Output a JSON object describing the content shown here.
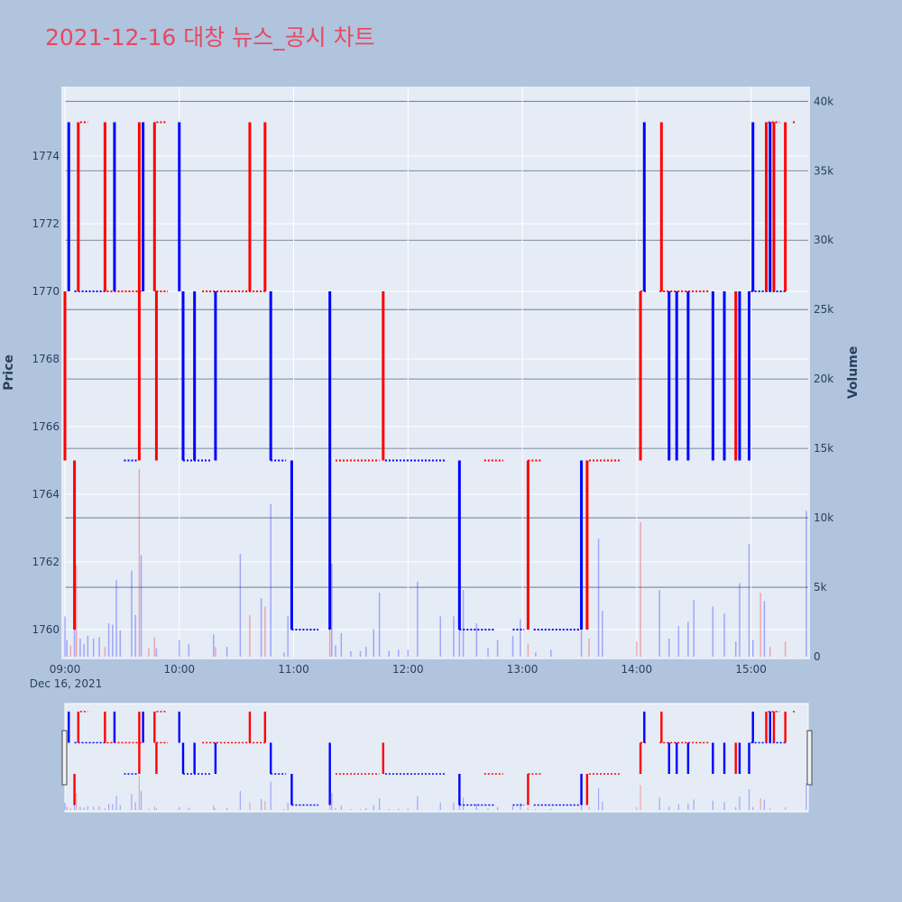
{
  "page": {
    "title": "2021-12-16 대창 뉴스_공시 차트"
  },
  "colors": {
    "up": "#ff0000",
    "down": "#0000ff",
    "background": "#b0c4de",
    "plot_bg": "#e5ecf6",
    "title": "#e8485f"
  },
  "chart_data": {
    "type": "candlestick",
    "title": "2021-12-16 대창 뉴스_공시 차트",
    "y_axis": {
      "label": "Price",
      "range": [
        1759.2,
        1776.0
      ],
      "ticks": [
        "1760",
        "1762",
        "1764",
        "1766",
        "1768",
        "1770",
        "1772",
        "1774"
      ],
      "tick_values": [
        1760,
        1762,
        1764,
        1766,
        1768,
        1770,
        1772,
        1774
      ]
    },
    "y2_axis": {
      "label": "Volume",
      "range": [
        0,
        40800
      ],
      "ticks": [
        "0",
        "5k",
        "10k",
        "15k",
        "20k",
        "25k",
        "30k",
        "35k",
        "40k"
      ],
      "tick_values": [
        0,
        5000,
        10000,
        15000,
        20000,
        25000,
        30000,
        35000,
        40000
      ]
    },
    "x_axis": {
      "range": [
        "09:00",
        "15:30"
      ],
      "ticks": [
        "09:00",
        "10:00",
        "11:00",
        "12:00",
        "13:00",
        "14:00",
        "15:00"
      ],
      "date_label": "Dec 16, 2021"
    },
    "grid": true,
    "range_slider": true,
    "price_jumps": [
      {
        "t": "09:00",
        "from": 1765,
        "to": 1770,
        "dir": "up"
      },
      {
        "t": "09:02",
        "from": 1770,
        "to": 1775,
        "dir": "down"
      },
      {
        "t": "09:03",
        "from": 1765,
        "to": 1760,
        "dir": "down"
      },
      {
        "t": "09:05",
        "from": 1760,
        "to": 1765,
        "dir": "up"
      },
      {
        "t": "09:07",
        "from": 1770,
        "to": 1775,
        "dir": "up"
      },
      {
        "t": "09:21",
        "from": 1770,
        "to": 1775,
        "dir": "up"
      },
      {
        "t": "09:26",
        "from": 1770,
        "to": 1775,
        "dir": "down"
      },
      {
        "t": "09:39",
        "from": 1765,
        "to": 1775,
        "dir": "up"
      },
      {
        "t": "09:41",
        "from": 1770,
        "to": 1775,
        "dir": "down"
      },
      {
        "t": "09:47",
        "from": 1770,
        "to": 1775,
        "dir": "up"
      },
      {
        "t": "09:48",
        "from": 1765,
        "to": 1770,
        "dir": "up"
      },
      {
        "t": "10:00",
        "from": 1770,
        "to": 1775,
        "dir": "down"
      },
      {
        "t": "10:02",
        "from": 1765,
        "to": 1770,
        "dir": "down"
      },
      {
        "t": "10:08",
        "from": 1765,
        "to": 1770,
        "dir": "down"
      },
      {
        "t": "10:19",
        "from": 1765,
        "to": 1770,
        "dir": "down"
      },
      {
        "t": "10:37",
        "from": 1770,
        "to": 1775,
        "dir": "up"
      },
      {
        "t": "10:45",
        "from": 1770,
        "to": 1775,
        "dir": "up"
      },
      {
        "t": "10:48",
        "from": 1765,
        "to": 1770,
        "dir": "down"
      },
      {
        "t": "10:59",
        "from": 1760,
        "to": 1765,
        "dir": "down"
      },
      {
        "t": "11:19",
        "from": 1760,
        "to": 1770,
        "dir": "down"
      },
      {
        "t": "11:47",
        "from": 1765,
        "to": 1770,
        "dir": "up"
      },
      {
        "t": "12:27",
        "from": 1760,
        "to": 1765,
        "dir": "down"
      },
      {
        "t": "13:03",
        "from": 1760,
        "to": 1765,
        "dir": "up"
      },
      {
        "t": "13:31",
        "from": 1760,
        "to": 1765,
        "dir": "down"
      },
      {
        "t": "13:34",
        "from": 1760,
        "to": 1765,
        "dir": "up"
      },
      {
        "t": "14:02",
        "from": 1765,
        "to": 1770,
        "dir": "up"
      },
      {
        "t": "14:04",
        "from": 1770,
        "to": 1775,
        "dir": "down"
      },
      {
        "t": "14:13",
        "from": 1770,
        "to": 1775,
        "dir": "up"
      },
      {
        "t": "14:17",
        "from": 1765,
        "to": 1770,
        "dir": "down"
      },
      {
        "t": "14:21",
        "from": 1765,
        "to": 1770,
        "dir": "down"
      },
      {
        "t": "14:27",
        "from": 1765,
        "to": 1770,
        "dir": "down"
      },
      {
        "t": "14:40",
        "from": 1765,
        "to": 1770,
        "dir": "down"
      },
      {
        "t": "14:46",
        "from": 1765,
        "to": 1770,
        "dir": "down"
      },
      {
        "t": "14:52",
        "from": 1765,
        "to": 1770,
        "dir": "up"
      },
      {
        "t": "14:54",
        "from": 1765,
        "to": 1770,
        "dir": "down"
      },
      {
        "t": "14:59",
        "from": 1765,
        "to": 1770,
        "dir": "down"
      },
      {
        "t": "15:01",
        "from": 1770,
        "to": 1775,
        "dir": "down"
      },
      {
        "t": "15:08",
        "from": 1770,
        "to": 1775,
        "dir": "up"
      },
      {
        "t": "15:10",
        "from": 1770,
        "to": 1775,
        "dir": "down"
      },
      {
        "t": "15:12",
        "from": 1770,
        "to": 1775,
        "dir": "up"
      },
      {
        "t": "15:18",
        "from": 1770,
        "to": 1775,
        "dir": "up"
      }
    ],
    "price_levels": [
      {
        "from": "09:05",
        "to": "09:22",
        "level": 1770,
        "dir": "down"
      },
      {
        "from": "09:08",
        "to": "09:12",
        "level": 1775,
        "dir": "up"
      },
      {
        "from": "09:22",
        "to": "09:40",
        "level": 1770,
        "dir": "up"
      },
      {
        "from": "09:31",
        "to": "09:38",
        "level": 1765,
        "dir": "down"
      },
      {
        "from": "09:48",
        "to": "09:54",
        "level": 1770,
        "dir": "up"
      },
      {
        "from": "09:48",
        "to": "09:53",
        "level": 1775,
        "dir": "up"
      },
      {
        "from": "10:02",
        "to": "10:17",
        "level": 1765,
        "dir": "down"
      },
      {
        "from": "10:12",
        "to": "10:46",
        "level": 1770,
        "dir": "up"
      },
      {
        "from": "10:48",
        "to": "10:56",
        "level": 1765,
        "dir": "down"
      },
      {
        "from": "10:59",
        "to": "11:13",
        "level": 1760,
        "dir": "down"
      },
      {
        "from": "11:22",
        "to": "11:45",
        "level": 1765,
        "dir": "up"
      },
      {
        "from": "11:48",
        "to": "12:20",
        "level": 1765,
        "dir": "down"
      },
      {
        "from": "12:27",
        "to": "12:45",
        "level": 1760,
        "dir": "down"
      },
      {
        "from": "12:40",
        "to": "12:50",
        "level": 1765,
        "dir": "up"
      },
      {
        "from": "12:55",
        "to": "13:01",
        "level": 1760,
        "dir": "down"
      },
      {
        "from": "13:03",
        "to": "13:10",
        "level": 1765,
        "dir": "up"
      },
      {
        "from": "13:06",
        "to": "13:30",
        "level": 1760,
        "dir": "down"
      },
      {
        "from": "13:35",
        "to": "13:52",
        "level": 1765,
        "dir": "up"
      },
      {
        "from": "14:02",
        "to": "14:05",
        "level": 1770,
        "dir": "up"
      },
      {
        "from": "14:12",
        "to": "14:38",
        "level": 1770,
        "dir": "up"
      },
      {
        "from": "15:00",
        "to": "15:18",
        "level": 1770,
        "dir": "down"
      },
      {
        "from": "15:09",
        "to": "15:15",
        "level": 1775,
        "dir": "up"
      },
      {
        "from": "15:22",
        "to": "15:23",
        "level": 1775,
        "dir": "up"
      }
    ],
    "volume_bars": [
      {
        "t": "09:00",
        "v": 2900,
        "dir": "down"
      },
      {
        "t": "09:01",
        "v": 1200,
        "dir": "down"
      },
      {
        "t": "09:03",
        "v": 800,
        "dir": "up"
      },
      {
        "t": "09:05",
        "v": 2700,
        "dir": "down"
      },
      {
        "t": "09:06",
        "v": 6600,
        "dir": "up"
      },
      {
        "t": "09:08",
        "v": 1300,
        "dir": "down"
      },
      {
        "t": "09:10",
        "v": 900,
        "dir": "down"
      },
      {
        "t": "09:12",
        "v": 1500,
        "dir": "down"
      },
      {
        "t": "09:15",
        "v": 1300,
        "dir": "down"
      },
      {
        "t": "09:18",
        "v": 1400,
        "dir": "down"
      },
      {
        "t": "09:21",
        "v": 700,
        "dir": "up"
      },
      {
        "t": "09:23",
        "v": 2400,
        "dir": "down"
      },
      {
        "t": "09:25",
        "v": 2300,
        "dir": "down"
      },
      {
        "t": "09:27",
        "v": 5500,
        "dir": "down"
      },
      {
        "t": "09:29",
        "v": 1900,
        "dir": "down"
      },
      {
        "t": "09:35",
        "v": 6200,
        "dir": "down"
      },
      {
        "t": "09:37",
        "v": 3000,
        "dir": "down"
      },
      {
        "t": "09:39",
        "v": 13500,
        "dir": "up"
      },
      {
        "t": "09:40",
        "v": 7300,
        "dir": "down"
      },
      {
        "t": "09:44",
        "v": 600,
        "dir": "up"
      },
      {
        "t": "09:47",
        "v": 1400,
        "dir": "up"
      },
      {
        "t": "09:48",
        "v": 600,
        "dir": "down"
      },
      {
        "t": "10:00",
        "v": 1200,
        "dir": "down"
      },
      {
        "t": "10:05",
        "v": 900,
        "dir": "down"
      },
      {
        "t": "10:18",
        "v": 1600,
        "dir": "down"
      },
      {
        "t": "10:19",
        "v": 700,
        "dir": "up"
      },
      {
        "t": "10:25",
        "v": 700,
        "dir": "down"
      },
      {
        "t": "10:32",
        "v": 7400,
        "dir": "down"
      },
      {
        "t": "10:37",
        "v": 3000,
        "dir": "up"
      },
      {
        "t": "10:43",
        "v": 4200,
        "dir": "down"
      },
      {
        "t": "10:45",
        "v": 3600,
        "dir": "up"
      },
      {
        "t": "10:48",
        "v": 11000,
        "dir": "down"
      },
      {
        "t": "10:55",
        "v": 300,
        "dir": "down"
      },
      {
        "t": "10:57",
        "v": 2900,
        "dir": "down"
      },
      {
        "t": "11:19",
        "v": 6600,
        "dir": "up"
      },
      {
        "t": "11:20",
        "v": 6700,
        "dir": "down"
      },
      {
        "t": "11:22",
        "v": 800,
        "dir": "down"
      },
      {
        "t": "11:25",
        "v": 1700,
        "dir": "down"
      },
      {
        "t": "11:30",
        "v": 400,
        "dir": "down"
      },
      {
        "t": "11:35",
        "v": 400,
        "dir": "down"
      },
      {
        "t": "11:38",
        "v": 700,
        "dir": "down"
      },
      {
        "t": "11:42",
        "v": 2000,
        "dir": "down"
      },
      {
        "t": "11:45",
        "v": 4600,
        "dir": "down"
      },
      {
        "t": "11:50",
        "v": 400,
        "dir": "down"
      },
      {
        "t": "11:55",
        "v": 500,
        "dir": "down"
      },
      {
        "t": "12:00",
        "v": 500,
        "dir": "down"
      },
      {
        "t": "12:05",
        "v": 5400,
        "dir": "down"
      },
      {
        "t": "12:17",
        "v": 2900,
        "dir": "down"
      },
      {
        "t": "12:24",
        "v": 2900,
        "dir": "down"
      },
      {
        "t": "12:27",
        "v": 6100,
        "dir": "down"
      },
      {
        "t": "12:29",
        "v": 4800,
        "dir": "down"
      },
      {
        "t": "12:36",
        "v": 2400,
        "dir": "down"
      },
      {
        "t": "12:42",
        "v": 600,
        "dir": "down"
      },
      {
        "t": "12:47",
        "v": 1200,
        "dir": "down"
      },
      {
        "t": "12:55",
        "v": 1500,
        "dir": "down"
      },
      {
        "t": "12:59",
        "v": 2700,
        "dir": "down"
      },
      {
        "t": "13:03",
        "v": 900,
        "dir": "up"
      },
      {
        "t": "13:07",
        "v": 300,
        "dir": "down"
      },
      {
        "t": "13:15",
        "v": 500,
        "dir": "down"
      },
      {
        "t": "13:31",
        "v": 2300,
        "dir": "down"
      },
      {
        "t": "13:35",
        "v": 1300,
        "dir": "up"
      },
      {
        "t": "13:40",
        "v": 8500,
        "dir": "down"
      },
      {
        "t": "13:42",
        "v": 3300,
        "dir": "down"
      },
      {
        "t": "14:00",
        "v": 1100,
        "dir": "up"
      },
      {
        "t": "14:02",
        "v": 9700,
        "dir": "up"
      },
      {
        "t": "14:12",
        "v": 4800,
        "dir": "down"
      },
      {
        "t": "14:17",
        "v": 1300,
        "dir": "down"
      },
      {
        "t": "14:22",
        "v": 2200,
        "dir": "down"
      },
      {
        "t": "14:27",
        "v": 2500,
        "dir": "down"
      },
      {
        "t": "14:30",
        "v": 4100,
        "dir": "down"
      },
      {
        "t": "14:40",
        "v": 3600,
        "dir": "down"
      },
      {
        "t": "14:46",
        "v": 3100,
        "dir": "down"
      },
      {
        "t": "14:52",
        "v": 1100,
        "dir": "down"
      },
      {
        "t": "14:54",
        "v": 5300,
        "dir": "down"
      },
      {
        "t": "14:59",
        "v": 8100,
        "dir": "down"
      },
      {
        "t": "15:01",
        "v": 1200,
        "dir": "down"
      },
      {
        "t": "15:05",
        "v": 4600,
        "dir": "up"
      },
      {
        "t": "15:07",
        "v": 4000,
        "dir": "down"
      },
      {
        "t": "15:10",
        "v": 700,
        "dir": "up"
      },
      {
        "t": "15:18",
        "v": 1100,
        "dir": "up"
      },
      {
        "t": "15:29",
        "v": 10500,
        "dir": "down"
      }
    ]
  }
}
